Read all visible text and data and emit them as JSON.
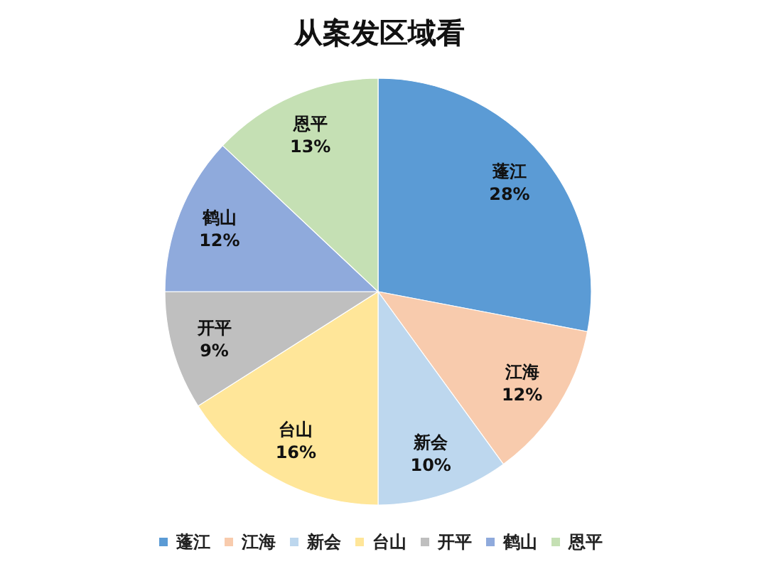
{
  "chart_data": {
    "type": "pie",
    "title": "从案发区域看",
    "categories": [
      "蓬江",
      "江海",
      "新会",
      "台山",
      "开平",
      "鹤山",
      "恩平"
    ],
    "values": [
      28,
      12,
      10,
      16,
      9,
      12,
      13
    ],
    "colors": [
      "#5b9bd5",
      "#f8cbad",
      "#bdd7ee",
      "#ffe699",
      "#bfbfbf",
      "#8faadc",
      "#c5e0b4"
    ],
    "value_labels": [
      "28%",
      "12%",
      "10%",
      "16%",
      "9%",
      "12%",
      "13%"
    ],
    "legend": "bottom"
  }
}
